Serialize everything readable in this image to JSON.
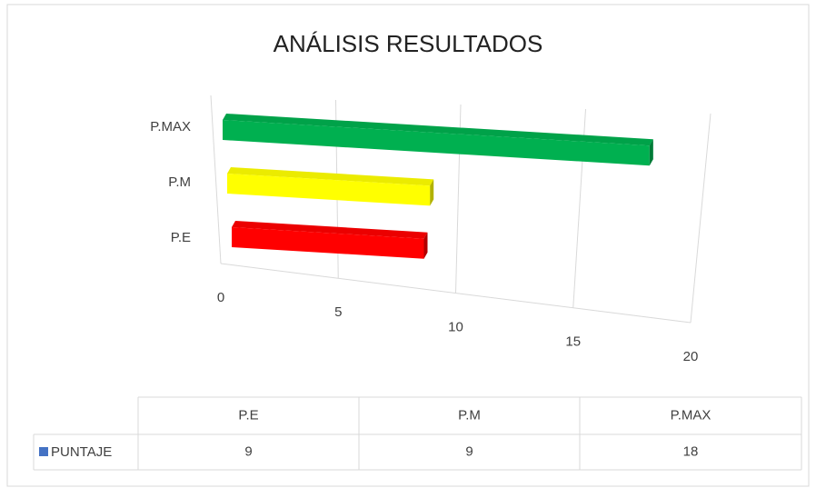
{
  "chart_data": {
    "type": "bar3d_horizontal",
    "title": "ANÁLISIS RESULTADOS",
    "categories": [
      "P.E",
      "P.M",
      "P.MAX"
    ],
    "series": [
      {
        "name": "PUNTAJE",
        "color": "#4472c4",
        "values": [
          9,
          9,
          18
        ]
      }
    ],
    "point_colors": [
      "#ff0000",
      "#ffff00",
      "#00b050"
    ],
    "xlim": [
      0,
      20
    ],
    "xticks": [
      0,
      5,
      10,
      15,
      20
    ],
    "grid": true,
    "data_table": true
  }
}
